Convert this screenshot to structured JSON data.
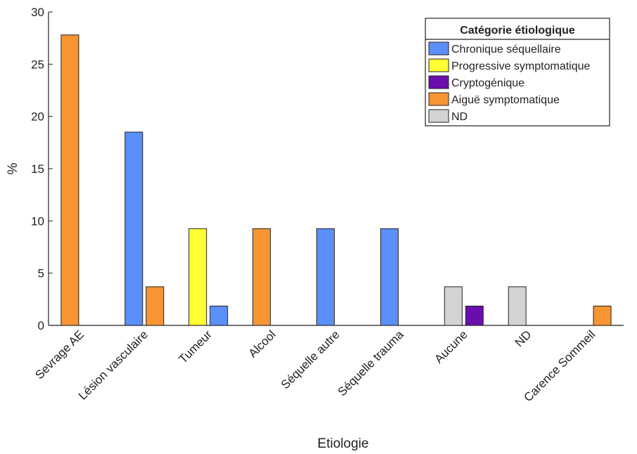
{
  "chart_data": {
    "type": "bar",
    "xlabel": "Etiologie",
    "ylabel": "%",
    "ylim": [
      0,
      30
    ],
    "yticks": [
      0,
      5,
      10,
      15,
      20,
      25,
      30
    ],
    "grid": false,
    "categories": [
      "Sevrage AE",
      "Lésion vasculaire",
      "Tumeur",
      "Alcool",
      "Séquelle autre",
      "Séquelle trauma",
      "Aucune",
      "ND",
      "Carence Sommeil"
    ],
    "legend": {
      "title": "Catégorie étiologique",
      "placement": "top-right"
    },
    "series": [
      {
        "name": "Chronique séquellaire",
        "color": "#5b8ff9",
        "values": [
          0,
          18.5,
          1.85,
          0,
          9.26,
          9.26,
          0,
          0,
          0
        ]
      },
      {
        "name": "Progressive symptomatique",
        "color": "#ffff33",
        "values": [
          0,
          0,
          9.26,
          0,
          0,
          0,
          0,
          0,
          0
        ]
      },
      {
        "name": "Cryptogénique",
        "color": "#6a0dad",
        "values": [
          0,
          0,
          0,
          0,
          0,
          0,
          1.85,
          0,
          0
        ]
      },
      {
        "name": "Aiguë symptomatique",
        "color": "#f79532",
        "values": [
          27.8,
          3.7,
          0,
          9.26,
          0,
          0,
          0,
          0,
          1.85
        ]
      },
      {
        "name": "ND",
        "color": "#d3d3d3",
        "values": [
          0,
          0,
          0,
          0,
          0,
          0,
          3.7,
          3.7,
          0
        ]
      }
    ],
    "bar_pairs": [
      [
        {
          "series": 3,
          "value": 27.8
        },
        {
          "series": 0,
          "value": 0
        }
      ],
      [
        {
          "series": 0,
          "value": 18.5
        },
        {
          "series": 3,
          "value": 3.7
        }
      ],
      [
        {
          "series": 1,
          "value": 9.26
        },
        {
          "series": 0,
          "value": 1.85
        }
      ],
      [
        {
          "series": 3,
          "value": 9.26
        },
        {
          "series": 0,
          "value": 0
        }
      ],
      [
        {
          "series": 0,
          "value": 9.26
        },
        {
          "series": 0,
          "value": 0
        }
      ],
      [
        {
          "series": 0,
          "value": 9.26
        },
        {
          "series": 0,
          "value": 0
        }
      ],
      [
        {
          "series": 4,
          "value": 3.7
        },
        {
          "series": 2,
          "value": 1.85
        }
      ],
      [
        {
          "series": 4,
          "value": 3.7
        },
        {
          "series": 0,
          "value": 0
        }
      ],
      [
        {
          "series": 3,
          "value": 0
        },
        {
          "series": 3,
          "value": 1.85
        }
      ]
    ]
  }
}
